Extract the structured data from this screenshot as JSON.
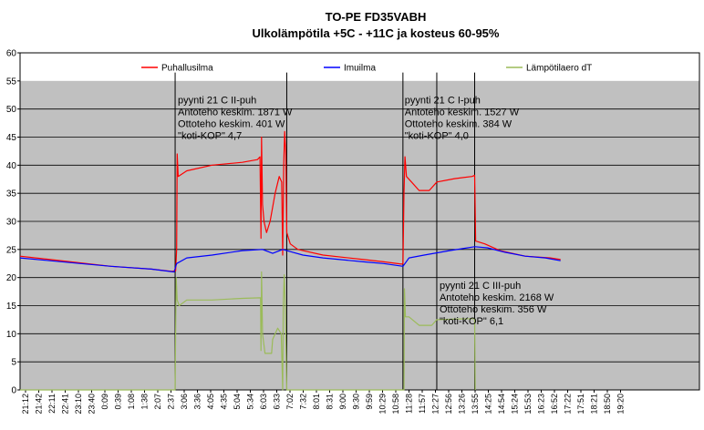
{
  "chart_data": {
    "type": "line",
    "title": "TO-PE FD35VABH",
    "subtitle": "Ulkolämpötila +5C - +11C ja kosteus 60-95%",
    "xlabel": "",
    "ylabel": "",
    "ylim": [
      0,
      60
    ],
    "yticks": [
      0,
      5,
      10,
      15,
      20,
      25,
      30,
      35,
      40,
      45,
      50,
      55,
      60
    ],
    "grid": true,
    "legend_position": "top",
    "background": "#c0c0c0",
    "x_tick_labels": [
      "21:12",
      "21:42",
      "22:11",
      "22:41",
      "23:10",
      "23:40",
      "0:09",
      "0:39",
      "1:08",
      "1:38",
      "2:07",
      "2:37",
      "3:06",
      "3:36",
      "4:05",
      "4:35",
      "5:04",
      "5:34",
      "6:03",
      "6:33",
      "7:02",
      "7:32",
      "8:01",
      "8:31",
      "9:00",
      "9:30",
      "9:59",
      "10:29",
      "10:58",
      "11:28",
      "11:57",
      "12:27",
      "12:56",
      "13:26",
      "13:55",
      "14:25",
      "14:54",
      "15:24",
      "15:53",
      "16:23",
      "16:52",
      "17:22",
      "17:51",
      "18:21",
      "18:50",
      "19:20"
    ],
    "x_domain_minutes": [
      0,
      1345
    ],
    "series": [
      {
        "name": "Puhallusilma",
        "color": "#ff0000",
        "points": [
          [
            0,
            23.8
          ],
          [
            60,
            23.2
          ],
          [
            120,
            22.6
          ],
          [
            180,
            22.0
          ],
          [
            260,
            21.5
          ],
          [
            300,
            21.1
          ],
          [
            308,
            21.2
          ],
          [
            310,
            25
          ],
          [
            311,
            42
          ],
          [
            313,
            38
          ],
          [
            330,
            39
          ],
          [
            380,
            40
          ],
          [
            440,
            40.5
          ],
          [
            470,
            41
          ],
          [
            475,
            41.5
          ],
          [
            477,
            27
          ],
          [
            478,
            45
          ],
          [
            480,
            33
          ],
          [
            483,
            30
          ],
          [
            488,
            28
          ],
          [
            495,
            30
          ],
          [
            505,
            35
          ],
          [
            513,
            38
          ],
          [
            518,
            37
          ],
          [
            520,
            24
          ],
          [
            522,
            40
          ],
          [
            524,
            46
          ],
          [
            526,
            42
          ],
          [
            528,
            28
          ],
          [
            535,
            26
          ],
          [
            550,
            25
          ],
          [
            600,
            24
          ],
          [
            680,
            23.2
          ],
          [
            720,
            22.8
          ],
          [
            755,
            22.4
          ],
          [
            758,
            22.5
          ],
          [
            760,
            35
          ],
          [
            762,
            41.5
          ],
          [
            765,
            38
          ],
          [
            775,
            37
          ],
          [
            790,
            35.5
          ],
          [
            810,
            35.5
          ],
          [
            825,
            37
          ],
          [
            860,
            37.6
          ],
          [
            895,
            38
          ],
          [
            900,
            38.2
          ],
          [
            902,
            26.5
          ],
          [
            920,
            26
          ],
          [
            950,
            24.8
          ],
          [
            1000,
            23.8
          ],
          [
            1050,
            23.5
          ],
          [
            1070,
            23.2
          ]
        ]
      },
      {
        "name": "Imuilma",
        "color": "#0000ff",
        "points": [
          [
            0,
            23.5
          ],
          [
            60,
            23.0
          ],
          [
            120,
            22.5
          ],
          [
            180,
            22.0
          ],
          [
            260,
            21.5
          ],
          [
            305,
            21.0
          ],
          [
            310,
            22.5
          ],
          [
            330,
            23.5
          ],
          [
            380,
            24.0
          ],
          [
            440,
            24.8
          ],
          [
            480,
            25.0
          ],
          [
            500,
            24.3
          ],
          [
            520,
            25.0
          ],
          [
            540,
            24.5
          ],
          [
            560,
            24.0
          ],
          [
            600,
            23.5
          ],
          [
            680,
            22.8
          ],
          [
            720,
            22.5
          ],
          [
            758,
            22.0
          ],
          [
            770,
            23.5
          ],
          [
            800,
            24.0
          ],
          [
            850,
            24.8
          ],
          [
            900,
            25.5
          ],
          [
            925,
            25.3
          ],
          [
            960,
            24.5
          ],
          [
            1000,
            23.8
          ],
          [
            1040,
            23.5
          ],
          [
            1070,
            23.0
          ]
        ]
      },
      {
        "name": "Lämpötilaero dT",
        "color": "#9bbb59",
        "points": [
          [
            0,
            0
          ],
          [
            307,
            0
          ],
          [
            309,
            20
          ],
          [
            311,
            16
          ],
          [
            315,
            15
          ],
          [
            330,
            16
          ],
          [
            380,
            16
          ],
          [
            440,
            16.3
          ],
          [
            476,
            16.4
          ],
          [
            477,
            7
          ],
          [
            478,
            21
          ],
          [
            480,
            10
          ],
          [
            485,
            6.5
          ],
          [
            490,
            6.5
          ],
          [
            498,
            6.5
          ],
          [
            500,
            9
          ],
          [
            510,
            11
          ],
          [
            517,
            10
          ],
          [
            520,
            0
          ],
          [
            521,
            15
          ],
          [
            523,
            20.5
          ],
          [
            525,
            15
          ],
          [
            528,
            0
          ],
          [
            760,
            0
          ],
          [
            761,
            18
          ],
          [
            763,
            13
          ],
          [
            770,
            13
          ],
          [
            790,
            11.5
          ],
          [
            815,
            11.5
          ],
          [
            825,
            12.5
          ],
          [
            900,
            12.7
          ],
          [
            901,
            0
          ]
        ]
      }
    ],
    "annotations": [
      {
        "lines": [
          "pyynti 21 C II-puh",
          "Antoteho keskim. 1871 W",
          "Ottoteho keskim. 401 W",
          "\"koti-KOP\" 4,7"
        ],
        "anchor": [
          307,
          51
        ]
      },
      {
        "lines": [
          "pyynti 21 C I-puh",
          "Antoteho keskim. 1527 W",
          "Ottoteho keskim. 384 W",
          "\"koti-KOP\" 4,0"
        ],
        "anchor": [
          756,
          51
        ]
      },
      {
        "lines": [
          "pyynti 21 C III-puh",
          "Antoteho keskim. 2168 W",
          "Ottoteho keskim. 356 W",
          "\"koti-KOP\" 6,1"
        ],
        "anchor": [
          825,
          18
        ]
      }
    ],
    "marker_lines_minutes": [
      307,
      528,
      758,
      825,
      900
    ]
  }
}
